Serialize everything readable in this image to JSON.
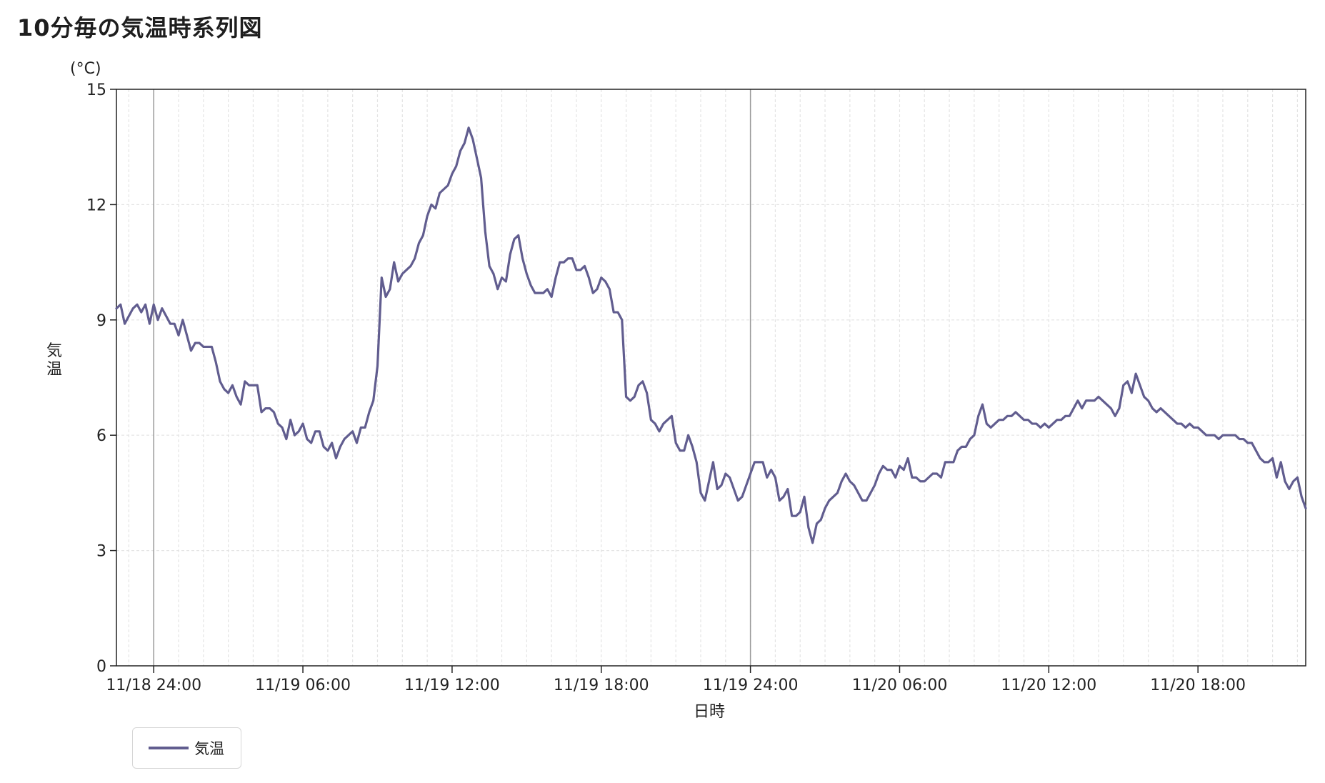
{
  "title": "10分毎の気温時系列図",
  "colors": {
    "series": "#615d8f",
    "axis": "#222222",
    "major_grid": "#9a9a9a",
    "minor_grid": "#e4e4e4"
  },
  "legend": {
    "label": "気温",
    "placement": "bottom-left"
  },
  "chart_data": {
    "type": "line",
    "title": "10分毎の気温時系列図",
    "xlabel": "日時",
    "ylabel": "気温",
    "yunit": "(°C)",
    "ylim": [
      0,
      15
    ],
    "yticks": [
      0,
      3,
      6,
      9,
      12,
      15
    ],
    "xlim": [
      "2024-11-18 22:30",
      "2024-11-20 22:20"
    ],
    "xticks": [
      {
        "t": "2024-11-19 00:00",
        "label": "11/18 24:00",
        "major": true
      },
      {
        "t": "2024-11-19 06:00",
        "label": "11/19 06:00",
        "major": false
      },
      {
        "t": "2024-11-19 12:00",
        "label": "11/19 12:00",
        "major": false
      },
      {
        "t": "2024-11-19 18:00",
        "label": "11/19 18:00",
        "major": false
      },
      {
        "t": "2024-11-20 00:00",
        "label": "11/19 24:00",
        "major": true
      },
      {
        "t": "2024-11-20 06:00",
        "label": "11/20 06:00",
        "major": false
      },
      {
        "t": "2024-11-20 12:00",
        "label": "11/20 12:00",
        "major": false
      },
      {
        "t": "2024-11-20 18:00",
        "label": "11/20 18:00",
        "major": false
      }
    ],
    "grid": true,
    "legend": "bottom-left",
    "series": [
      {
        "name": "気温",
        "x": [
          "2024-11-18 22:30",
          "2024-11-18 22:40",
          "2024-11-18 22:50",
          "2024-11-18 23:00",
          "2024-11-18 23:10",
          "2024-11-18 23:20",
          "2024-11-18 23:30",
          "2024-11-18 23:40",
          "2024-11-18 23:50",
          "2024-11-19 00:00",
          "2024-11-19 00:10",
          "2024-11-19 00:20",
          "2024-11-19 00:30",
          "2024-11-19 00:40",
          "2024-11-19 00:50",
          "2024-11-19 01:00",
          "2024-11-19 01:10",
          "2024-11-19 01:20",
          "2024-11-19 01:30",
          "2024-11-19 01:40",
          "2024-11-19 01:50",
          "2024-11-19 02:00",
          "2024-11-19 02:10",
          "2024-11-19 02:20",
          "2024-11-19 02:30",
          "2024-11-19 02:40",
          "2024-11-19 02:50",
          "2024-11-19 03:00",
          "2024-11-19 03:10",
          "2024-11-19 03:20",
          "2024-11-19 03:30",
          "2024-11-19 03:40",
          "2024-11-19 03:50",
          "2024-11-19 04:00",
          "2024-11-19 04:10",
          "2024-11-19 04:20",
          "2024-11-19 04:30",
          "2024-11-19 04:40",
          "2024-11-19 04:50",
          "2024-11-19 05:00",
          "2024-11-19 05:10",
          "2024-11-19 05:20",
          "2024-11-19 05:30",
          "2024-11-19 05:40",
          "2024-11-19 05:50",
          "2024-11-19 06:00",
          "2024-11-19 06:10",
          "2024-11-19 06:20",
          "2024-11-19 06:30",
          "2024-11-19 06:40",
          "2024-11-19 06:50",
          "2024-11-19 07:00",
          "2024-11-19 07:10",
          "2024-11-19 07:20",
          "2024-11-19 07:30",
          "2024-11-19 07:40",
          "2024-11-19 07:50",
          "2024-11-19 08:00",
          "2024-11-19 08:10",
          "2024-11-19 08:20",
          "2024-11-19 08:30",
          "2024-11-19 08:40",
          "2024-11-19 08:50",
          "2024-11-19 09:00",
          "2024-11-19 09:10",
          "2024-11-19 09:20",
          "2024-11-19 09:30",
          "2024-11-19 09:40",
          "2024-11-19 09:50",
          "2024-11-19 10:00",
          "2024-11-19 10:10",
          "2024-11-19 10:20",
          "2024-11-19 10:30",
          "2024-11-19 10:40",
          "2024-11-19 10:50",
          "2024-11-19 11:00",
          "2024-11-19 11:10",
          "2024-11-19 11:20",
          "2024-11-19 11:30",
          "2024-11-19 11:40",
          "2024-11-19 11:50",
          "2024-11-19 12:00",
          "2024-11-19 12:10",
          "2024-11-19 12:20",
          "2024-11-19 12:30",
          "2024-11-19 12:40",
          "2024-11-19 12:50",
          "2024-11-19 13:00",
          "2024-11-19 13:10",
          "2024-11-19 13:20",
          "2024-11-19 13:30",
          "2024-11-19 13:40",
          "2024-11-19 13:50",
          "2024-11-19 14:00",
          "2024-11-19 14:10",
          "2024-11-19 14:20",
          "2024-11-19 14:30",
          "2024-11-19 14:40",
          "2024-11-19 14:50",
          "2024-11-19 15:00",
          "2024-11-19 15:10",
          "2024-11-19 15:20",
          "2024-11-19 15:30",
          "2024-11-19 15:40",
          "2024-11-19 15:50",
          "2024-11-19 16:00",
          "2024-11-19 16:10",
          "2024-11-19 16:20",
          "2024-11-19 16:30",
          "2024-11-19 16:40",
          "2024-11-19 16:50",
          "2024-11-19 17:00",
          "2024-11-19 17:10",
          "2024-11-19 17:20",
          "2024-11-19 17:30",
          "2024-11-19 17:40",
          "2024-11-19 17:50",
          "2024-11-19 18:00",
          "2024-11-19 18:10",
          "2024-11-19 18:20",
          "2024-11-19 18:30",
          "2024-11-19 18:40",
          "2024-11-19 18:50",
          "2024-11-19 19:00",
          "2024-11-19 19:10",
          "2024-11-19 19:20",
          "2024-11-19 19:30",
          "2024-11-19 19:40",
          "2024-11-19 19:50",
          "2024-11-19 20:00",
          "2024-11-19 20:10",
          "2024-11-19 20:20",
          "2024-11-19 20:30",
          "2024-11-19 20:40",
          "2024-11-19 20:50",
          "2024-11-19 21:00",
          "2024-11-19 21:10",
          "2024-11-19 21:20",
          "2024-11-19 21:30",
          "2024-11-19 21:40",
          "2024-11-19 21:50",
          "2024-11-19 22:00",
          "2024-11-19 22:10",
          "2024-11-19 22:20",
          "2024-11-19 22:30",
          "2024-11-19 22:40",
          "2024-11-19 22:50",
          "2024-11-19 23:00",
          "2024-11-19 23:10",
          "2024-11-19 23:20",
          "2024-11-19 23:30",
          "2024-11-19 23:40",
          "2024-11-19 23:50",
          "2024-11-20 00:00",
          "2024-11-20 00:10",
          "2024-11-20 00:20",
          "2024-11-20 00:30",
          "2024-11-20 00:40",
          "2024-11-20 00:50",
          "2024-11-20 01:00",
          "2024-11-20 01:10",
          "2024-11-20 01:20",
          "2024-11-20 01:30",
          "2024-11-20 01:40",
          "2024-11-20 01:50",
          "2024-11-20 02:00",
          "2024-11-20 02:10",
          "2024-11-20 02:20",
          "2024-11-20 02:30",
          "2024-11-20 02:40",
          "2024-11-20 02:50",
          "2024-11-20 03:00",
          "2024-11-20 03:10",
          "2024-11-20 03:20",
          "2024-11-20 03:30",
          "2024-11-20 03:40",
          "2024-11-20 03:50",
          "2024-11-20 04:00",
          "2024-11-20 04:10",
          "2024-11-20 04:20",
          "2024-11-20 04:30",
          "2024-11-20 04:40",
          "2024-11-20 04:50",
          "2024-11-20 05:00",
          "2024-11-20 05:10",
          "2024-11-20 05:20",
          "2024-11-20 05:30",
          "2024-11-20 05:40",
          "2024-11-20 05:50",
          "2024-11-20 06:00",
          "2024-11-20 06:10",
          "2024-11-20 06:20",
          "2024-11-20 06:30",
          "2024-11-20 06:40",
          "2024-11-20 06:50",
          "2024-11-20 07:00",
          "2024-11-20 07:10",
          "2024-11-20 07:20",
          "2024-11-20 07:30",
          "2024-11-20 07:40",
          "2024-11-20 07:50",
          "2024-11-20 08:00",
          "2024-11-20 08:10",
          "2024-11-20 08:20",
          "2024-11-20 08:30",
          "2024-11-20 08:40",
          "2024-11-20 08:50",
          "2024-11-20 09:00",
          "2024-11-20 09:10",
          "2024-11-20 09:20",
          "2024-11-20 09:30",
          "2024-11-20 09:40",
          "2024-11-20 09:50",
          "2024-11-20 10:00",
          "2024-11-20 10:10",
          "2024-11-20 10:20",
          "2024-11-20 10:30",
          "2024-11-20 10:40",
          "2024-11-20 10:50",
          "2024-11-20 11:00",
          "2024-11-20 11:10",
          "2024-11-20 11:20",
          "2024-11-20 11:30",
          "2024-11-20 11:40",
          "2024-11-20 11:50",
          "2024-11-20 12:00",
          "2024-11-20 12:10",
          "2024-11-20 12:20",
          "2024-11-20 12:30",
          "2024-11-20 12:40",
          "2024-11-20 12:50",
          "2024-11-20 13:00",
          "2024-11-20 13:10",
          "2024-11-20 13:20",
          "2024-11-20 13:30",
          "2024-11-20 13:40",
          "2024-11-20 13:50",
          "2024-11-20 14:00",
          "2024-11-20 14:10",
          "2024-11-20 14:20",
          "2024-11-20 14:30",
          "2024-11-20 14:40",
          "2024-11-20 14:50",
          "2024-11-20 15:00",
          "2024-11-20 15:10",
          "2024-11-20 15:20",
          "2024-11-20 15:30",
          "2024-11-20 15:40",
          "2024-11-20 15:50",
          "2024-11-20 16:00",
          "2024-11-20 16:10",
          "2024-11-20 16:20",
          "2024-11-20 16:30",
          "2024-11-20 16:40",
          "2024-11-20 16:50",
          "2024-11-20 17:00",
          "2024-11-20 17:10",
          "2024-11-20 17:20",
          "2024-11-20 17:30",
          "2024-11-20 17:40",
          "2024-11-20 17:50",
          "2024-11-20 18:00",
          "2024-11-20 18:10",
          "2024-11-20 18:20",
          "2024-11-20 18:30",
          "2024-11-20 18:40",
          "2024-11-20 18:50",
          "2024-11-20 19:00",
          "2024-11-20 19:10",
          "2024-11-20 19:20",
          "2024-11-20 19:30",
          "2024-11-20 19:40",
          "2024-11-20 19:50",
          "2024-11-20 20:00",
          "2024-11-20 20:10",
          "2024-11-20 20:20",
          "2024-11-20 20:30",
          "2024-11-20 20:40",
          "2024-11-20 20:50",
          "2024-11-20 21:00",
          "2024-11-20 21:10",
          "2024-11-20 21:20",
          "2024-11-20 21:30",
          "2024-11-20 21:40",
          "2024-11-20 21:50",
          "2024-11-20 22:00",
          "2024-11-20 22:10",
          "2024-11-20 22:20"
        ],
        "values": [
          9.3,
          9.4,
          8.9,
          9.1,
          9.3,
          9.4,
          9.2,
          9.4,
          8.9,
          9.4,
          9.0,
          9.3,
          9.1,
          8.9,
          8.9,
          8.6,
          9.0,
          8.6,
          8.2,
          8.4,
          8.4,
          8.3,
          8.3,
          8.3,
          7.9,
          7.4,
          7.2,
          7.1,
          7.3,
          7.0,
          6.8,
          7.4,
          7.3,
          7.3,
          7.3,
          6.6,
          6.7,
          6.7,
          6.6,
          6.3,
          6.2,
          5.9,
          6.4,
          6.0,
          6.1,
          6.3,
          5.9,
          5.8,
          6.1,
          6.1,
          5.7,
          5.6,
          5.8,
          5.4,
          5.7,
          5.9,
          6.0,
          6.1,
          5.8,
          6.2,
          6.2,
          6.6,
          6.9,
          7.8,
          10.1,
          9.6,
          9.8,
          10.5,
          10.0,
          10.2,
          10.3,
          10.4,
          10.6,
          11.0,
          11.2,
          11.7,
          12.0,
          11.9,
          12.3,
          12.4,
          12.5,
          12.8,
          13.0,
          13.4,
          13.6,
          14.0,
          13.7,
          13.2,
          12.7,
          11.3,
          10.4,
          10.2,
          9.8,
          10.1,
          10.0,
          10.7,
          11.1,
          11.2,
          10.6,
          10.2,
          9.9,
          9.7,
          9.7,
          9.7,
          9.8,
          9.6,
          10.1,
          10.5,
          10.5,
          10.6,
          10.6,
          10.3,
          10.3,
          10.4,
          10.1,
          9.7,
          9.8,
          10.1,
          10.0,
          9.8,
          9.2,
          9.2,
          9.0,
          7.0,
          6.9,
          7.0,
          7.3,
          7.4,
          7.1,
          6.4,
          6.3,
          6.1,
          6.3,
          6.4,
          6.5,
          5.8,
          5.6,
          5.6,
          6.0,
          5.7,
          5.3,
          4.5,
          4.3,
          4.8,
          5.3,
          4.6,
          4.7,
          5.0,
          4.9,
          4.6,
          4.3,
          4.4,
          4.7,
          5.0,
          5.3,
          5.3,
          5.3,
          4.9,
          5.1,
          4.9,
          4.3,
          4.4,
          4.6,
          3.9,
          3.9,
          4.0,
          4.4,
          3.6,
          3.2,
          3.7,
          3.8,
          4.1,
          4.3,
          4.4,
          4.5,
          4.8,
          5.0,
          4.8,
          4.7,
          4.5,
          4.3,
          4.3,
          4.5,
          4.7,
          5.0,
          5.2,
          5.1,
          5.1,
          4.9,
          5.2,
          5.1,
          5.4,
          4.9,
          4.9,
          4.8,
          4.8,
          4.9,
          5.0,
          5.0,
          4.9,
          5.3,
          5.3,
          5.3,
          5.6,
          5.7,
          5.7,
          5.9,
          6.0,
          6.5,
          6.8,
          6.3,
          6.2,
          6.3,
          6.4,
          6.4,
          6.5,
          6.5,
          6.6,
          6.5,
          6.4,
          6.4,
          6.3,
          6.3,
          6.2,
          6.3,
          6.2,
          6.3,
          6.4,
          6.4,
          6.5,
          6.5,
          6.7,
          6.9,
          6.7,
          6.9,
          6.9,
          6.9,
          7.0,
          6.9,
          6.8,
          6.7,
          6.5,
          6.7,
          7.3,
          7.4,
          7.1,
          7.6,
          7.3,
          7.0,
          6.9,
          6.7,
          6.6,
          6.7,
          6.6,
          6.5,
          6.4,
          6.3,
          6.3,
          6.2,
          6.3,
          6.2,
          6.2,
          6.1,
          6.0,
          6.0,
          6.0,
          5.9,
          6.0,
          6.0,
          6.0,
          6.0,
          5.9,
          5.9,
          5.8,
          5.8,
          5.6,
          5.4,
          5.3,
          5.3,
          5.4,
          4.9,
          5.3,
          4.8,
          4.6,
          4.8,
          4.9,
          4.4,
          4.1
        ]
      }
    ]
  }
}
